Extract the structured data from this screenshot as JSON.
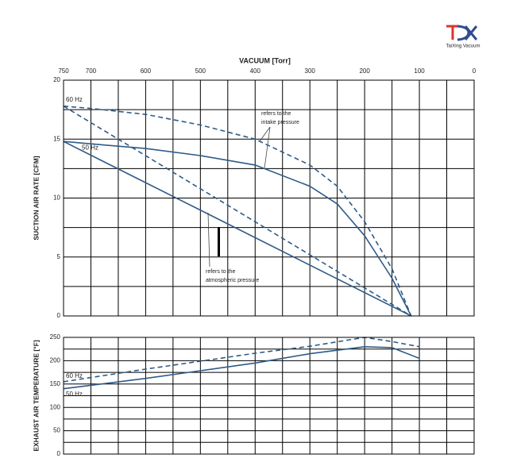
{
  "logo": {
    "text": "TaiXing Vacuum"
  },
  "chart_data": [
    {
      "type": "line",
      "xlabel": "VACUUM [Torr]",
      "ylabel": "SUCTION AIR RATE [CFM]",
      "xlim": [
        750,
        0
      ],
      "xticks": [
        750,
        700,
        600,
        500,
        400,
        300,
        200,
        100,
        0
      ],
      "ylim": [
        0,
        20
      ],
      "yticks": [
        0,
        5,
        10,
        15,
        20
      ],
      "grid": true,
      "series": [
        {
          "name": "60 Hz",
          "color": "#2e5b87",
          "dashed": true,
          "x": [
            750,
            700,
            600,
            500,
            400,
            300,
            250,
            200,
            150,
            115
          ],
          "values": [
            17.8,
            17.6,
            17.1,
            16.2,
            15.0,
            12.8,
            11.0,
            8.0,
            4.0,
            0
          ]
        },
        {
          "name": "50 Hz",
          "color": "#2e5b87",
          "dashed": false,
          "x": [
            750,
            700,
            600,
            500,
            400,
            300,
            250,
            200,
            150,
            115
          ],
          "values": [
            14.8,
            14.6,
            14.2,
            13.6,
            12.8,
            11.0,
            9.5,
            6.8,
            3.2,
            0
          ]
        },
        {
          "color": "#2e5b87",
          "dashed": true,
          "x": [
            750,
            115
          ],
          "values": [
            17.8,
            0
          ]
        },
        {
          "color": "#2e5b87",
          "dashed": false,
          "x": [
            750,
            115
          ],
          "values": [
            14.8,
            0
          ]
        }
      ],
      "annotations": [
        {
          "lines": [
            "refers to the",
            "intake pressure"
          ]
        },
        {
          "lines": [
            "refers to the",
            "atmospheric pressure"
          ]
        }
      ]
    },
    {
      "type": "line",
      "ylabel": "EXHAUST AIR TEMPERATURE [°F]",
      "xlim": [
        750,
        0
      ],
      "ylim": [
        0,
        250
      ],
      "yticks": [
        0,
        50,
        100,
        150,
        200,
        250
      ],
      "grid": true,
      "series": [
        {
          "name": "60 Hz",
          "color": "#2e5b87",
          "dashed": true,
          "x": [
            750,
            600,
            400,
            300,
            200,
            150,
            100
          ],
          "values": [
            155,
            182,
            216,
            231,
            250,
            241,
            230
          ]
        },
        {
          "name": "50 Hz",
          "color": "#2e5b87",
          "dashed": false,
          "x": [
            750,
            600,
            400,
            300,
            200,
            150,
            100
          ],
          "values": [
            140,
            162,
            195,
            215,
            230,
            228,
            205
          ]
        }
      ]
    }
  ]
}
